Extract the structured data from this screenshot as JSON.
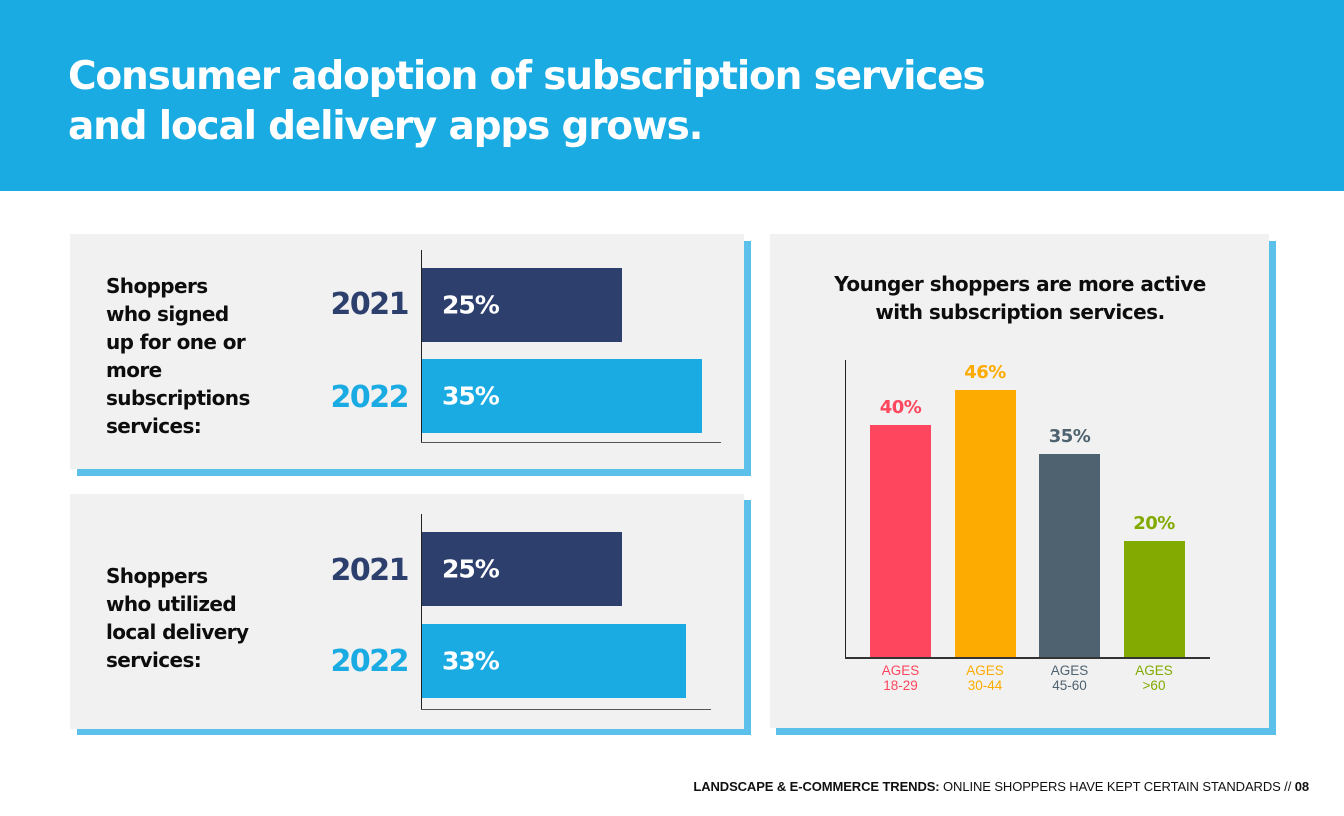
{
  "header": {
    "title_line1": "Consumer adoption of subscription services",
    "title_line2": "and local delivery apps grows.",
    "background_color": "#1aabe2"
  },
  "colors": {
    "year_2021": "#2c3f6d",
    "year_2022": "#1aabe2",
    "card_background": "#f1f1f1",
    "card_shadow": "#5bc0ea"
  },
  "chart_data": [
    {
      "type": "bar",
      "orientation": "horizontal",
      "title": "Shoppers who signed up for one or more subscriptions services:",
      "title_lines": [
        "Shoppers",
        "who signed",
        "up for one or",
        "more",
        "subscriptions",
        "services:"
      ],
      "categories": [
        "2021",
        "2022"
      ],
      "values": [
        25,
        35
      ],
      "value_labels": [
        "25%",
        "35%"
      ],
      "unit": "%",
      "xlim": [
        0,
        40
      ],
      "colors": [
        "#2c3f6d",
        "#1aabe2"
      ]
    },
    {
      "type": "bar",
      "orientation": "horizontal",
      "title": "Shoppers who utilized local delivery services:",
      "title_lines": [
        "Shoppers",
        "who utilized",
        "local delivery",
        "services:"
      ],
      "categories": [
        "2021",
        "2022"
      ],
      "values": [
        25,
        33
      ],
      "value_labels": [
        "25%",
        "33%"
      ],
      "unit": "%",
      "xlim": [
        0,
        40
      ],
      "colors": [
        "#2c3f6d",
        "#1aabe2"
      ]
    },
    {
      "type": "bar",
      "orientation": "vertical",
      "title": "Younger shoppers are more active with subscription services.",
      "title_lines": [
        "Younger shoppers are more active",
        "with subscription services."
      ],
      "categories": [
        "AGES 18-29",
        "AGES 30-44",
        "AGES 45-60",
        "AGES >60"
      ],
      "category_lines": [
        [
          "AGES",
          "18-29"
        ],
        [
          "AGES",
          "30-44"
        ],
        [
          "AGES",
          "45-60"
        ],
        [
          "AGES",
          ">60"
        ]
      ],
      "values": [
        40,
        46,
        35,
        20
      ],
      "value_labels": [
        "40%",
        "46%",
        "35%",
        "20%"
      ],
      "unit": "%",
      "ylim": [
        0,
        55
      ],
      "colors": [
        "#fe465e",
        "#fdab00",
        "#4e6270",
        "#82aa00"
      ]
    }
  ],
  "footer": {
    "bold_text": "LANDSCAPE & E-COMMERCE TRENDS:",
    "regular_text": " ONLINE SHOPPERS HAVE KEPT CERTAIN STANDARDS // ",
    "page_number": "08"
  }
}
